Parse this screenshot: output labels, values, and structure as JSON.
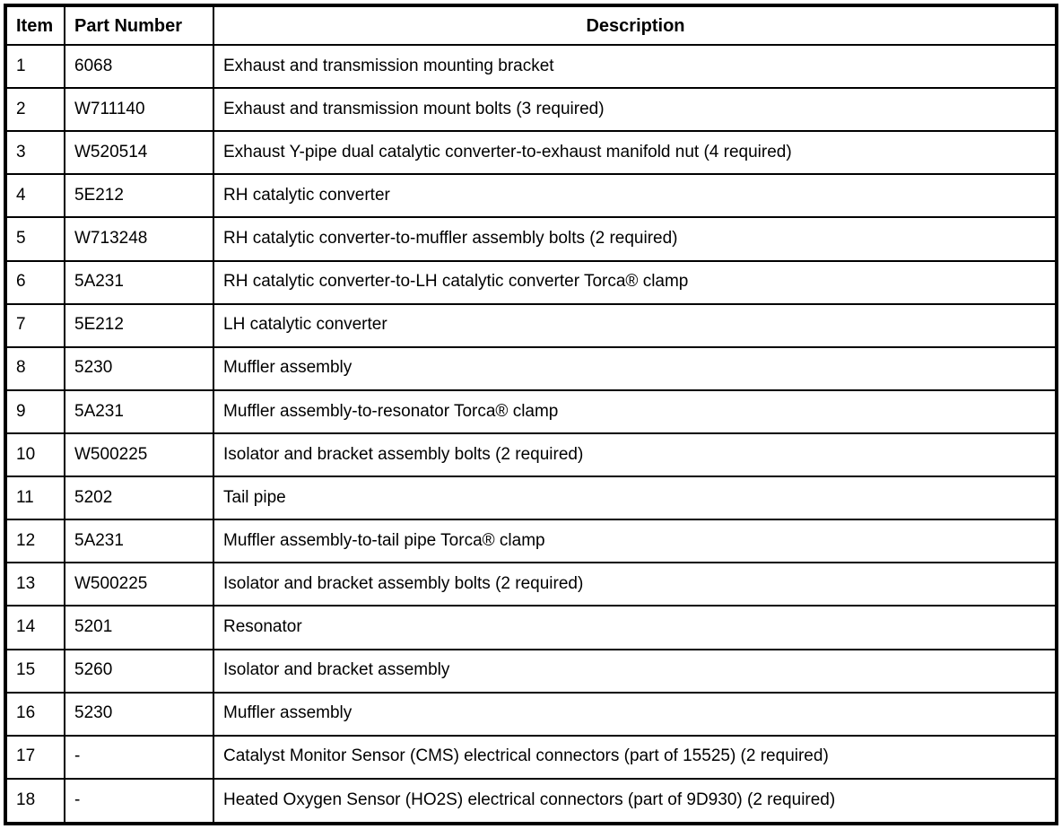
{
  "table": {
    "headers": {
      "item": "Item",
      "part_number": "Part Number",
      "description": "Description"
    },
    "rows": [
      {
        "item": "1",
        "part_number": "6068",
        "description": "Exhaust and transmission mounting bracket"
      },
      {
        "item": "2",
        "part_number": "W711140",
        "description": "Exhaust and transmission mount bolts (3 required)"
      },
      {
        "item": "3",
        "part_number": "W520514",
        "description": "Exhaust Y-pipe dual catalytic converter-to-exhaust manifold nut (4 required)"
      },
      {
        "item": "4",
        "part_number": "5E212",
        "description": "RH catalytic converter"
      },
      {
        "item": "5",
        "part_number": "W713248",
        "description": "RH catalytic converter-to-muffler assembly bolts (2 required)"
      },
      {
        "item": "6",
        "part_number": "5A231",
        "description": "RH catalytic converter-to-LH catalytic converter Torca® clamp"
      },
      {
        "item": "7",
        "part_number": "5E212",
        "description": "LH catalytic converter"
      },
      {
        "item": "8",
        "part_number": "5230",
        "description": "Muffler assembly"
      },
      {
        "item": "9",
        "part_number": "5A231",
        "description": "Muffler assembly-to-resonator Torca® clamp"
      },
      {
        "item": "10",
        "part_number": "W500225",
        "description": "Isolator and bracket assembly bolts (2 required)"
      },
      {
        "item": "11",
        "part_number": "5202",
        "description": "Tail pipe"
      },
      {
        "item": "12",
        "part_number": "5A231",
        "description": "Muffler assembly-to-tail pipe Torca® clamp"
      },
      {
        "item": "13",
        "part_number": "W500225",
        "description": "Isolator and bracket assembly bolts (2 required)"
      },
      {
        "item": "14",
        "part_number": "5201",
        "description": "Resonator"
      },
      {
        "item": "15",
        "part_number": "5260",
        "description": "Isolator and bracket assembly"
      },
      {
        "item": "16",
        "part_number": "5230",
        "description": "Muffler assembly"
      },
      {
        "item": "17",
        "part_number": "-",
        "description": "Catalyst Monitor Sensor (CMS) electrical connectors (part of 15525) (2 required)"
      },
      {
        "item": "18",
        "part_number": "-",
        "description": "Heated Oxygen Sensor (HO2S) electrical connectors (part of 9D930) (2 required)"
      }
    ],
    "colors": {
      "border": "#000000",
      "text": "#000000",
      "background": "#ffffff"
    }
  }
}
